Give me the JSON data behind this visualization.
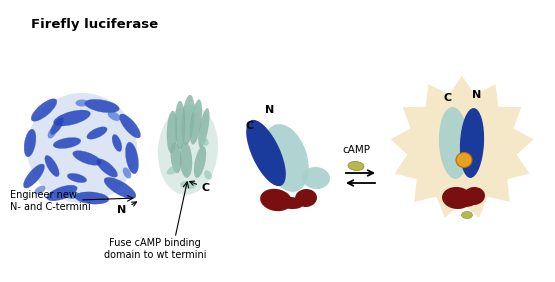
{
  "title": "Firefly luciferase",
  "label_engineer": "Engineer new\nN- and C-termini",
  "label_fuse": "Fuse cAMP binding\ndomain to wt termini",
  "label_camp": "cAMP",
  "bg_color": "#ffffff",
  "blue_dark": "#1a3a9c",
  "teal_lobe": "#a8d0cc",
  "dark_red": "#7a0f0f",
  "gold": "#e8a020",
  "starburst_color": "#f5e8c8",
  "protein_blue": "#1a3a9c",
  "protein_teal": "#8cb8a8",
  "camp_pill": "#b8b850"
}
